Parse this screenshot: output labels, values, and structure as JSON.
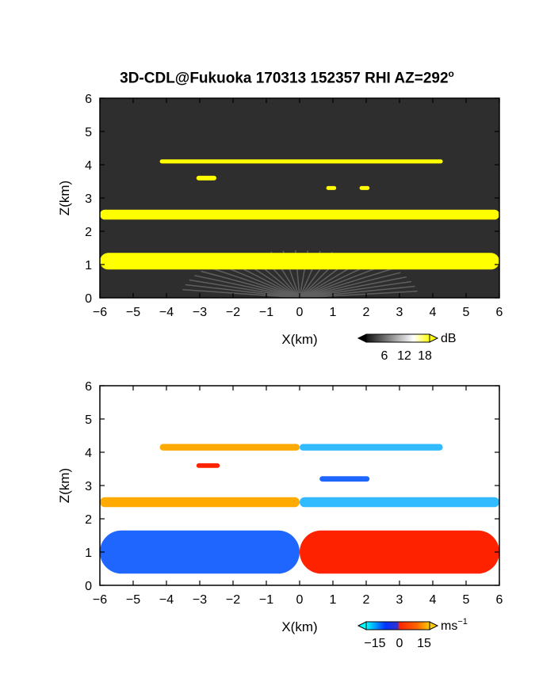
{
  "title": "3D-CDL@Fukuoka 170313 152357 RHI AZ=292",
  "title_degree": "o",
  "chart_data": [
    {
      "type": "heatmap",
      "panel": "reflectivity",
      "xlabel": "X(km)",
      "ylabel": "Z(km)",
      "xlim": [
        -6,
        6
      ],
      "ylim": [
        0,
        6
      ],
      "x_ticks": [
        "−6",
        "−5",
        "−4",
        "−3",
        "−2",
        "−1",
        "0",
        "1",
        "2",
        "3",
        "4",
        "5",
        "6"
      ],
      "y_ticks": [
        "0",
        "1",
        "2",
        "3",
        "4",
        "5",
        "6"
      ],
      "colorbar": {
        "unit": "dB",
        "ticks": [
          "6",
          "12",
          "18"
        ],
        "range": [
          0,
          21
        ],
        "colors": [
          "#000000",
          "#ffffff",
          "#ffff00"
        ]
      },
      "background_color": "#2e2e2e",
      "layers": [
        {
          "x_start": -4.2,
          "x_end": 4.3,
          "z": 4.1,
          "thickness": 0.12,
          "value": 20
        },
        {
          "x_start": -3.1,
          "x_end": -2.5,
          "z": 3.6,
          "thickness": 0.14,
          "value": 19
        },
        {
          "x_start": 0.8,
          "x_end": 1.1,
          "z": 3.3,
          "thickness": 0.12,
          "value": 19
        },
        {
          "x_start": 1.8,
          "x_end": 2.1,
          "z": 3.3,
          "thickness": 0.12,
          "value": 19
        },
        {
          "x_start": -6.0,
          "x_end": 6.0,
          "z": 2.5,
          "thickness": 0.3,
          "value": 21
        },
        {
          "x_start": -6.0,
          "x_end": 6.0,
          "z": 1.1,
          "thickness": 0.5,
          "value": 21
        }
      ]
    },
    {
      "type": "heatmap",
      "panel": "doppler_velocity",
      "xlabel": "X(km)",
      "ylabel": "Z(km)",
      "xlim": [
        -6,
        6
      ],
      "ylim": [
        0,
        6
      ],
      "x_ticks": [
        "−6",
        "−5",
        "−4",
        "−3",
        "−2",
        "−1",
        "0",
        "1",
        "2",
        "3",
        "4",
        "5",
        "6"
      ],
      "y_ticks": [
        "0",
        "1",
        "2",
        "3",
        "4",
        "5",
        "6"
      ],
      "colorbar": {
        "unit": "ms",
        "unit_exp": "−1",
        "ticks": [
          "−15",
          "0",
          "15"
        ],
        "range": [
          -20,
          20
        ],
        "colors": [
          "#00ffff",
          "#0033ff",
          "#ff0000",
          "#ffcc00"
        ]
      },
      "layers": [
        {
          "x_start": -4.2,
          "x_end": 0.0,
          "z": 4.15,
          "thickness": 0.2,
          "value": 14
        },
        {
          "x_start": 0.0,
          "x_end": 4.3,
          "z": 4.15,
          "thickness": 0.2,
          "value": -14
        },
        {
          "x_start": -3.1,
          "x_end": -2.4,
          "z": 3.6,
          "thickness": 0.14,
          "value": 8
        },
        {
          "x_start": 0.6,
          "x_end": 2.1,
          "z": 3.2,
          "thickness": 0.16,
          "value": -10
        },
        {
          "x_start": -6.0,
          "x_end": 0.0,
          "z": 2.5,
          "thickness": 0.3,
          "value": 13
        },
        {
          "x_start": 0.0,
          "x_end": 6.0,
          "z": 2.5,
          "thickness": 0.3,
          "value": -13
        },
        {
          "x_start": -6.0,
          "x_end": 0.0,
          "z": 1.0,
          "thickness": 1.3,
          "value": -10
        },
        {
          "x_start": 0.0,
          "x_end": 6.0,
          "z": 1.0,
          "thickness": 1.3,
          "value": 5
        }
      ]
    }
  ]
}
